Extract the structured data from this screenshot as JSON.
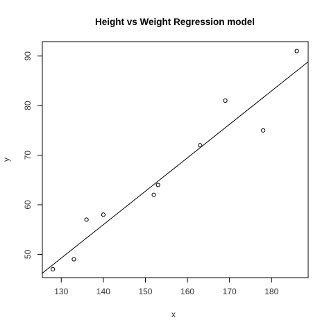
{
  "chart_data": {
    "type": "scatter",
    "title": "Height vs Weight Regression model",
    "xlabel": "x",
    "ylabel": "y",
    "xlim": [
      125.5,
      188.7
    ],
    "ylim": [
      45.3,
      92.9
    ],
    "x_ticks": [
      130,
      140,
      150,
      160,
      170,
      180
    ],
    "y_ticks": [
      50,
      60,
      70,
      80,
      90
    ],
    "grid": false,
    "points": [
      {
        "x": 128,
        "y": 47
      },
      {
        "x": 133,
        "y": 49
      },
      {
        "x": 136,
        "y": 57
      },
      {
        "x": 140,
        "y": 58
      },
      {
        "x": 152,
        "y": 62
      },
      {
        "x": 153,
        "y": 64
      },
      {
        "x": 163,
        "y": 72
      },
      {
        "x": 169,
        "y": 81
      },
      {
        "x": 178,
        "y": 75
      },
      {
        "x": 186,
        "y": 91
      }
    ],
    "regression_line": {
      "intercept": -38.46,
      "slope": 0.6746
    }
  }
}
